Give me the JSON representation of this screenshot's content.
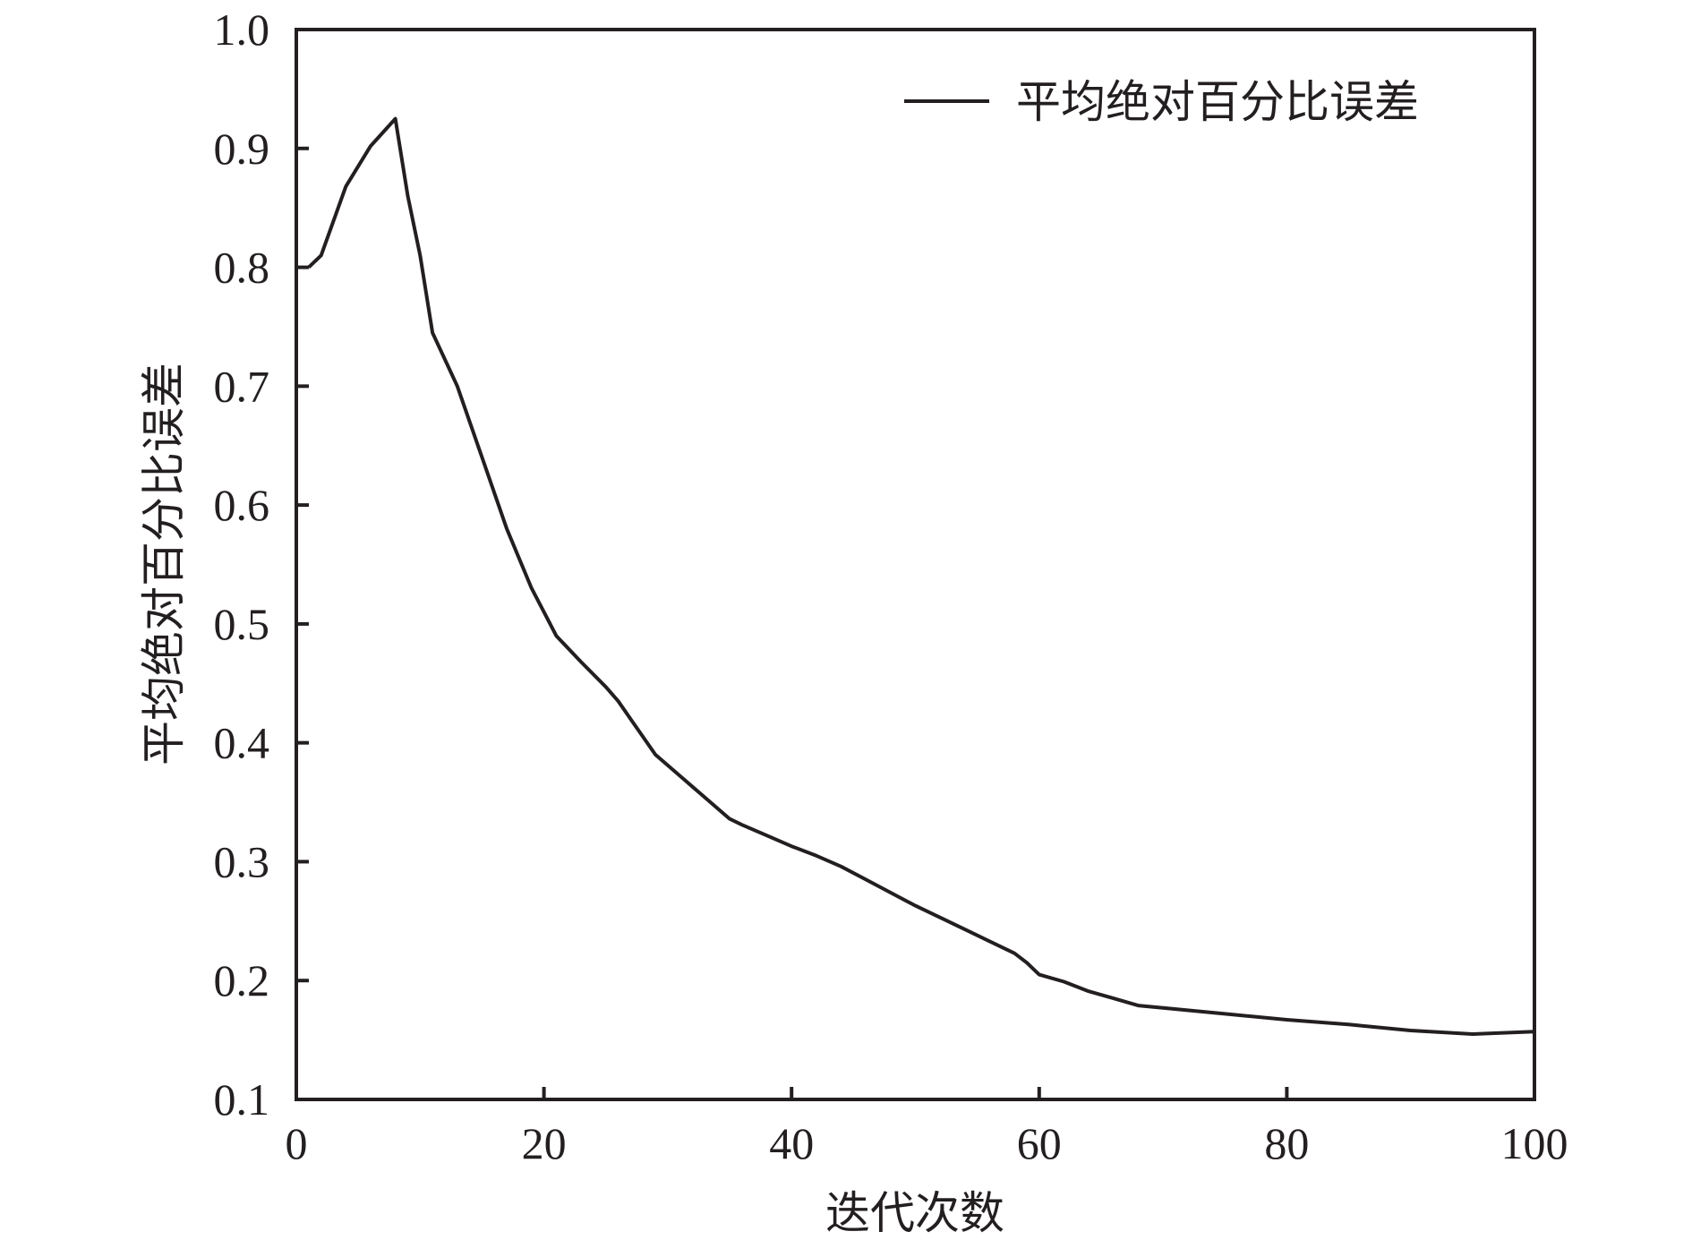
{
  "chart_data": {
    "type": "line",
    "title": "",
    "xlabel": "迭代次数",
    "ylabel": "平均绝对百分比误差",
    "xlim": [
      0,
      100
    ],
    "ylim": [
      0.1,
      1.0
    ],
    "xticks": [
      0,
      20,
      40,
      60,
      80,
      100
    ],
    "xtick_labels": [
      "0",
      "20",
      "40",
      "60",
      "80",
      "100"
    ],
    "yticks": [
      0.1,
      0.2,
      0.3,
      0.4,
      0.5,
      0.6,
      0.7,
      0.8,
      0.9,
      1.0
    ],
    "ytick_labels": [
      "0.1",
      "0.2",
      "0.3",
      "0.4",
      "0.5",
      "0.6",
      "0.7",
      "0.8",
      "0.9",
      "1.0"
    ],
    "grid": false,
    "legend_position": "top-right",
    "line_color": "#231f20",
    "series": [
      {
        "name": "平均绝对百分比误差",
        "x": [
          1,
          2,
          4,
          6,
          8,
          9,
          10,
          11,
          13,
          15,
          17,
          19,
          20,
          21,
          23,
          25,
          26,
          27,
          29,
          32,
          35,
          36,
          38,
          40,
          42,
          44,
          46,
          48,
          50,
          52,
          54,
          56,
          58,
          59,
          60,
          62,
          64,
          66,
          68,
          70,
          75,
          80,
          85,
          90,
          95,
          100
        ],
        "y": [
          0.8,
          0.81,
          0.868,
          0.902,
          0.925,
          0.86,
          0.81,
          0.745,
          0.7,
          0.64,
          0.58,
          0.53,
          0.51,
          0.49,
          0.468,
          0.447,
          0.435,
          0.42,
          0.39,
          0.363,
          0.336,
          0.331,
          0.322,
          0.313,
          0.305,
          0.296,
          0.285,
          0.274,
          0.263,
          0.253,
          0.243,
          0.233,
          0.223,
          0.215,
          0.205,
          0.199,
          0.191,
          0.185,
          0.179,
          0.177,
          0.172,
          0.167,
          0.163,
          0.158,
          0.155,
          0.157
        ]
      }
    ]
  }
}
